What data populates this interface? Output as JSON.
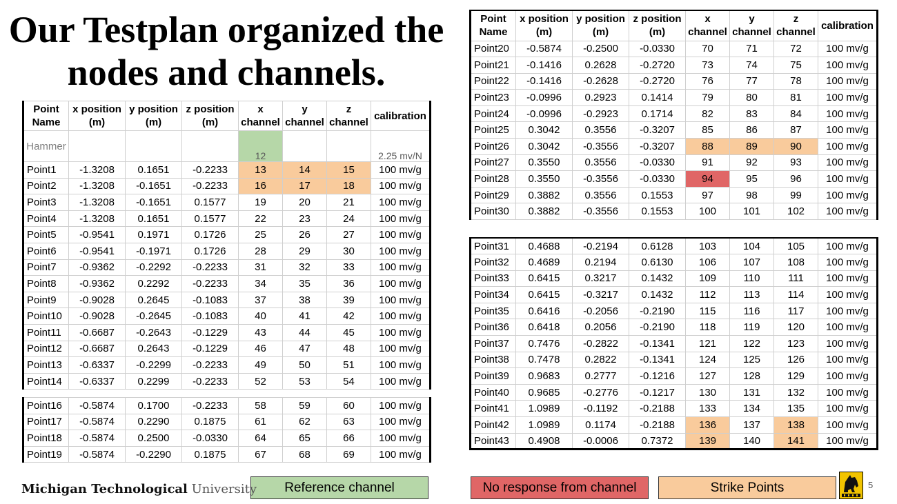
{
  "title_line1": "Our Testplan organized the",
  "title_line2": "nodes and channels.",
  "headers": [
    "Point Name",
    "x position (m)",
    "y position (m)",
    "z position (m)",
    "x channel",
    "y channel",
    "z channel",
    "calibration"
  ],
  "hammer": {
    "name": "Hammer",
    "x_channel": "12",
    "calibration": "2.25 mv/N"
  },
  "left_a": [
    [
      "Point1",
      "-1.3208",
      "0.1651",
      "-0.2233",
      "13",
      "14",
      "15",
      "100 mv/g"
    ],
    [
      "Point2",
      "-1.3208",
      "-0.1651",
      "-0.2233",
      "16",
      "17",
      "18",
      "100 mv/g"
    ],
    [
      "Point3",
      "-1.3208",
      "-0.1651",
      "0.1577",
      "19",
      "20",
      "21",
      "100 mv/g"
    ],
    [
      "Point4",
      "-1.3208",
      "0.1651",
      "0.1577",
      "22",
      "23",
      "24",
      "100 mv/g"
    ],
    [
      "Point5",
      "-0.9541",
      "0.1971",
      "0.1726",
      "25",
      "26",
      "27",
      "100 mv/g"
    ],
    [
      "Point6",
      "-0.9541",
      "-0.1971",
      "0.1726",
      "28",
      "29",
      "30",
      "100 mv/g"
    ],
    [
      "Point7",
      "-0.9362",
      "-0.2292",
      "-0.2233",
      "31",
      "32",
      "33",
      "100 mv/g"
    ],
    [
      "Point8",
      "-0.9362",
      "0.2292",
      "-0.2233",
      "34",
      "35",
      "36",
      "100 mv/g"
    ],
    [
      "Point9",
      "-0.9028",
      "0.2645",
      "-0.1083",
      "37",
      "38",
      "39",
      "100 mv/g"
    ],
    [
      "Point10",
      "-0.9028",
      "-0.2645",
      "-0.1083",
      "40",
      "41",
      "42",
      "100 mv/g"
    ],
    [
      "Point11",
      "-0.6687",
      "-0.2643",
      "-0.1229",
      "43",
      "44",
      "45",
      "100 mv/g"
    ],
    [
      "Point12",
      "-0.6687",
      "0.2643",
      "-0.1229",
      "46",
      "47",
      "48",
      "100 mv/g"
    ],
    [
      "Point13",
      "-0.6337",
      "-0.2299",
      "-0.2233",
      "49",
      "50",
      "51",
      "100 mv/g"
    ],
    [
      "Point14",
      "-0.6337",
      "0.2299",
      "-0.2233",
      "52",
      "53",
      "54",
      "100 mv/g"
    ]
  ],
  "left_b": [
    [
      "Point16",
      "-0.5874",
      "0.1700",
      "-0.2233",
      "58",
      "59",
      "60",
      "100 mv/g"
    ],
    [
      "Point17",
      "-0.5874",
      "0.2290",
      "0.1875",
      "61",
      "62",
      "63",
      "100 mv/g"
    ],
    [
      "Point18",
      "-0.5874",
      "0.2500",
      "-0.0330",
      "64",
      "65",
      "66",
      "100 mv/g"
    ],
    [
      "Point19",
      "-0.5874",
      "-0.2290",
      "0.1875",
      "67",
      "68",
      "69",
      "100 mv/g"
    ]
  ],
  "right_a": [
    [
      "Point20",
      "-0.5874",
      "-0.2500",
      "-0.0330",
      "70",
      "71",
      "72",
      "100 mv/g"
    ],
    [
      "Point21",
      "-0.1416",
      "0.2628",
      "-0.2720",
      "73",
      "74",
      "75",
      "100 mv/g"
    ],
    [
      "Point22",
      "-0.1416",
      "-0.2628",
      "-0.2720",
      "76",
      "77",
      "78",
      "100 mv/g"
    ],
    [
      "Point23",
      "-0.0996",
      "0.2923",
      "0.1414",
      "79",
      "80",
      "81",
      "100 mv/g"
    ],
    [
      "Point24",
      "-0.0996",
      "-0.2923",
      "0.1714",
      "82",
      "83",
      "84",
      "100 mv/g"
    ],
    [
      "Point25",
      "0.3042",
      "0.3556",
      "-0.3207",
      "85",
      "86",
      "87",
      "100 mv/g"
    ],
    [
      "Point26",
      "0.3042",
      "-0.3556",
      "-0.3207",
      "88",
      "89",
      "90",
      "100 mv/g"
    ],
    [
      "Point27",
      "0.3550",
      "0.3556",
      "-0.0330",
      "91",
      "92",
      "93",
      "100 mv/g"
    ],
    [
      "Point28",
      "0.3550",
      "-0.3556",
      "-0.0330",
      "94",
      "95",
      "96",
      "100 mv/g"
    ],
    [
      "Point29",
      "0.3882",
      "0.3556",
      "0.1553",
      "97",
      "98",
      "99",
      "100 mv/g"
    ],
    [
      "Point30",
      "0.3882",
      "-0.3556",
      "0.1553",
      "100",
      "101",
      "102",
      "100 mv/g"
    ]
  ],
  "right_b": [
    [
      "Point31",
      "0.4688",
      "-0.2194",
      "0.6128",
      "103",
      "104",
      "105",
      "100 mv/g"
    ],
    [
      "Point32",
      "0.4689",
      "0.2194",
      "0.6130",
      "106",
      "107",
      "108",
      "100 mv/g"
    ],
    [
      "Point33",
      "0.6415",
      "0.3217",
      "0.1432",
      "109",
      "110",
      "111",
      "100 mv/g"
    ],
    [
      "Point34",
      "0.6415",
      "-0.3217",
      "0.1432",
      "112",
      "113",
      "114",
      "100 mv/g"
    ],
    [
      "Point35",
      "0.6416",
      "-0.2056",
      "-0.2190",
      "115",
      "116",
      "117",
      "100 mv/g"
    ],
    [
      "Point36",
      "0.6418",
      "0.2056",
      "-0.2190",
      "118",
      "119",
      "120",
      "100 mv/g"
    ],
    [
      "Point37",
      "0.7476",
      "-0.2822",
      "-0.1341",
      "121",
      "122",
      "123",
      "100 mv/g"
    ],
    [
      "Point38",
      "0.7478",
      "0.2822",
      "-0.1341",
      "124",
      "125",
      "126",
      "100 mv/g"
    ],
    [
      "Point39",
      "0.9683",
      "0.2777",
      "-0.1216",
      "127",
      "128",
      "129",
      "100 mv/g"
    ],
    [
      "Point40",
      "0.9685",
      "-0.2776",
      "-0.1217",
      "130",
      "131",
      "132",
      "100 mv/g"
    ],
    [
      "Point41",
      "1.0989",
      "-0.1192",
      "-0.2188",
      "133",
      "134",
      "135",
      "100 mv/g"
    ],
    [
      "Point42",
      "1.0989",
      "0.1174",
      "-0.2188",
      "136",
      "137",
      "138",
      "100 mv/g"
    ],
    [
      "Point43",
      "0.4908",
      "-0.0006",
      "0.7372",
      "139",
      "140",
      "141",
      "100 mv/g"
    ]
  ],
  "highlights": {
    "strike": [
      "Point1:4",
      "Point1:5",
      "Point1:6",
      "Point2:4",
      "Point2:5",
      "Point2:6",
      "Point26:4",
      "Point26:5",
      "Point26:6",
      "Point42:4",
      "Point42:6",
      "Point43:4",
      "Point43:6"
    ],
    "no_response": [
      "Point28:4"
    ]
  },
  "legend": {
    "reference": "Reference channel",
    "no_response": "No response from channel",
    "strike": "Strike Points"
  },
  "colors": {
    "reference": "#b6d7a8",
    "no_response": "#e06666",
    "strike": "#f9cb9c"
  },
  "logo": {
    "bold": "Michigan Technological",
    "light": "University"
  },
  "page_number": "5"
}
